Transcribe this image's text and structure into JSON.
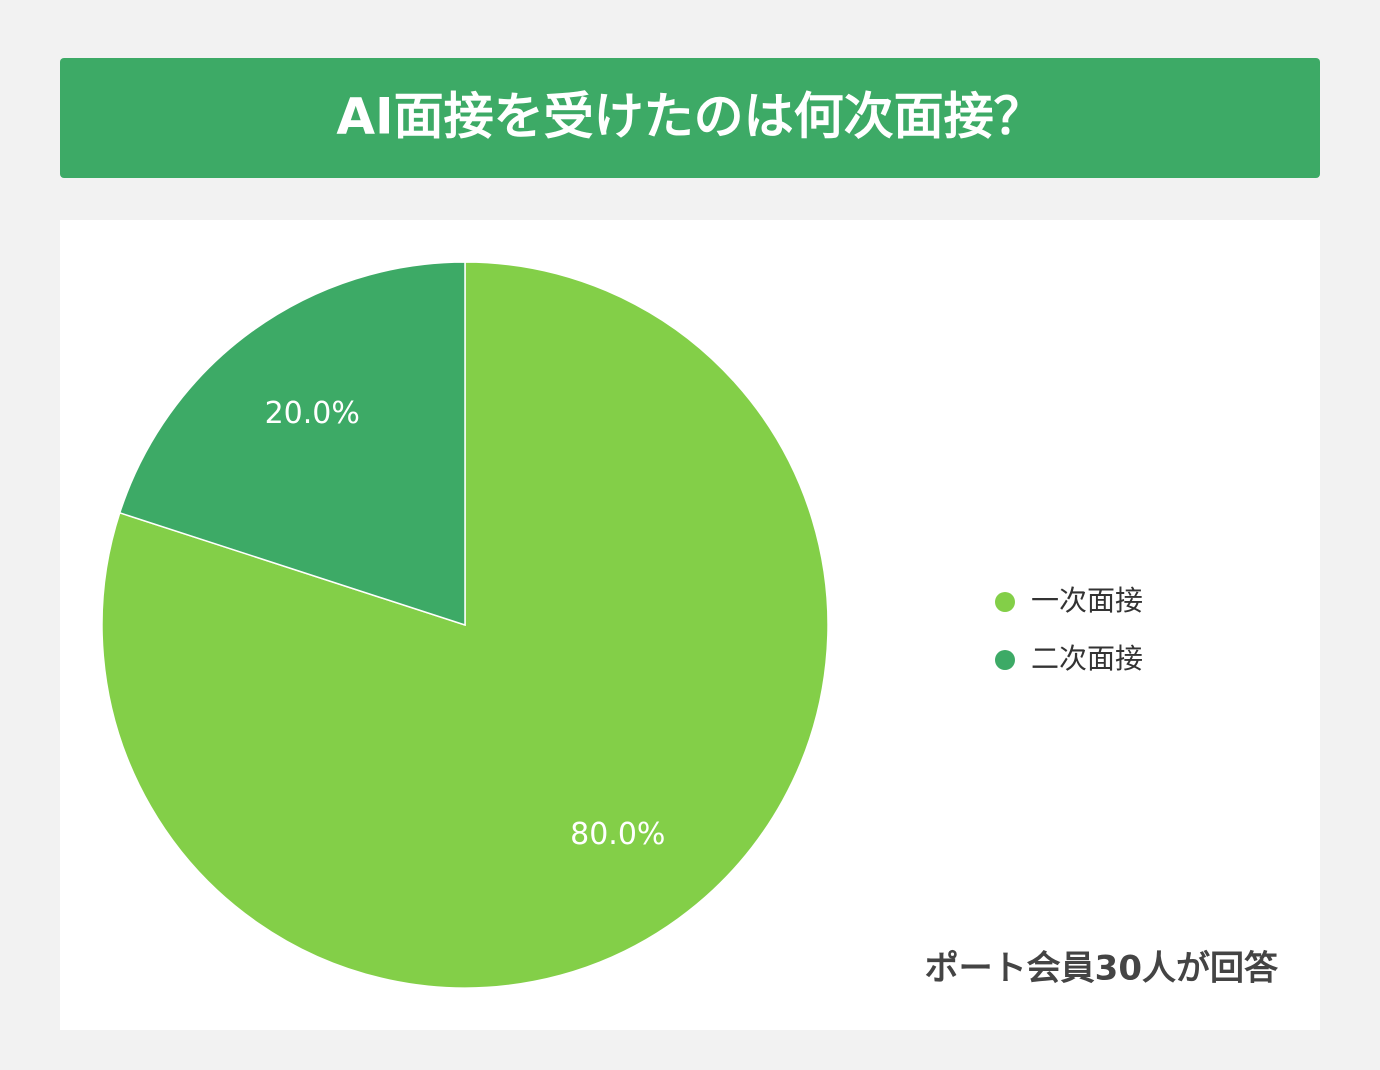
{
  "chart_data": {
    "type": "pie",
    "title": "AI面接を受けたのは何次面接？",
    "categories": [
      "一次面接",
      "二次面接"
    ],
    "values": [
      80,
      20
    ],
    "value_labels": [
      "80.0%",
      "20.0%"
    ],
    "colors": [
      "#83cf48",
      "#3daa66"
    ],
    "legend": "right",
    "annotation": "ポート会員30人が回答"
  }
}
